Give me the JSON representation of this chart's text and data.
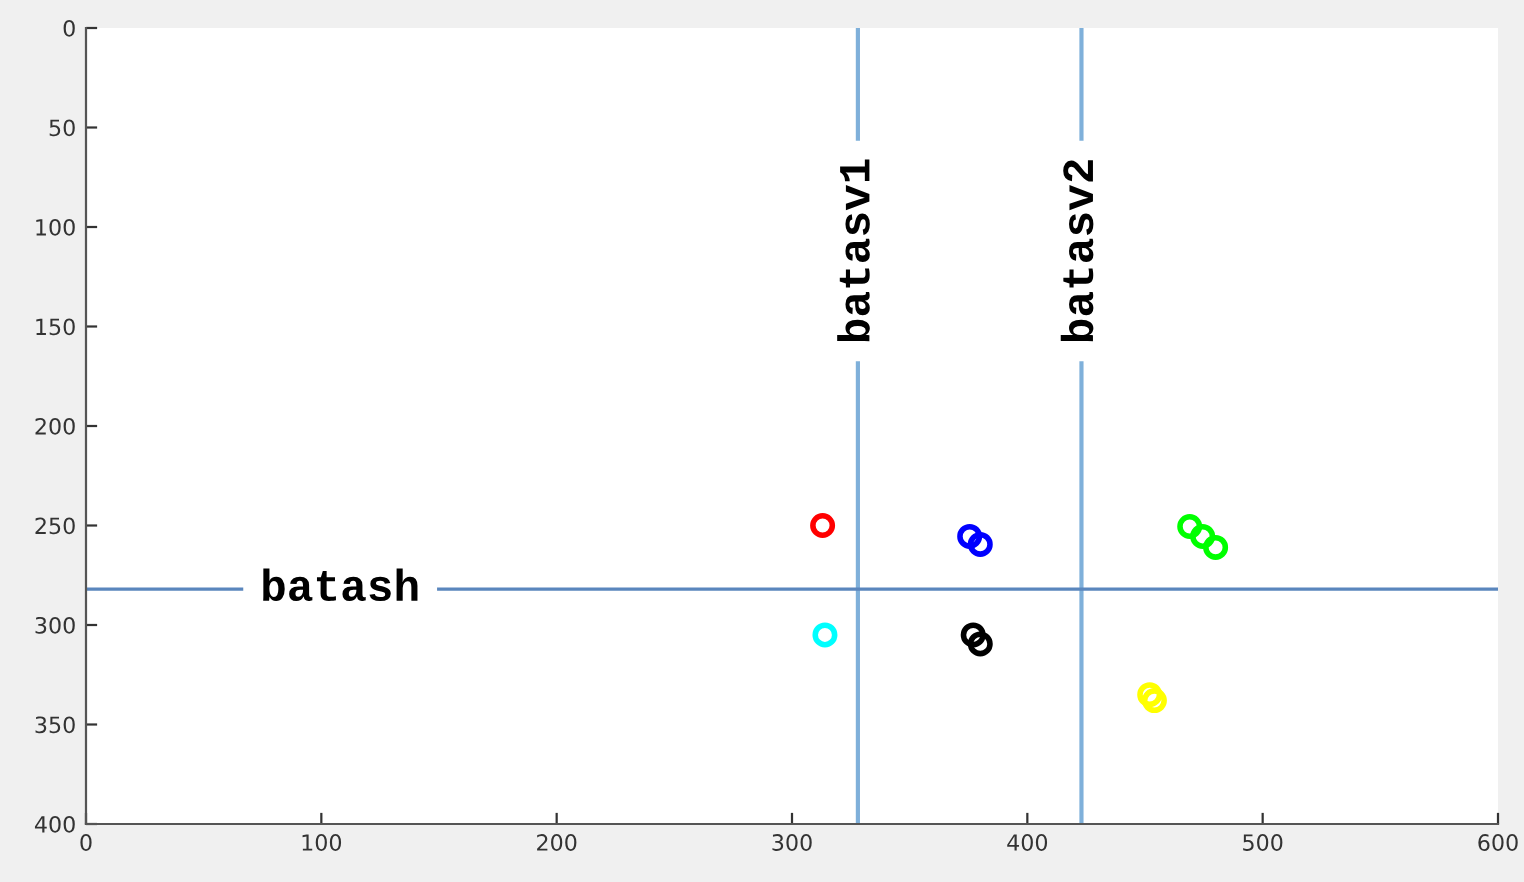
{
  "chart_data": {
    "type": "scatter",
    "marker": "circle",
    "grid": false,
    "legend": false,
    "xlim": [
      0,
      600
    ],
    "xticks": [
      0,
      100,
      200,
      300,
      400,
      500,
      600
    ],
    "ylim": [
      400,
      0
    ],
    "yticks": [
      0,
      50,
      100,
      150,
      200,
      250,
      300,
      350,
      400
    ],
    "series": [
      {
        "color": "#ff0000",
        "x": [
          313
        ],
        "values": [
          250
        ]
      },
      {
        "color": "#0000ff",
        "x": [
          375.5,
          380
        ],
        "values": [
          255.5,
          259.5
        ]
      },
      {
        "color": "#00ff00",
        "x": [
          469,
          474.5,
          480
        ],
        "values": [
          250.5,
          255.5,
          261
        ]
      },
      {
        "color": "#00ffff",
        "x": [
          314
        ],
        "values": [
          305
        ]
      },
      {
        "color": "#000000",
        "x": [
          377,
          380
        ],
        "values": [
          305,
          309.5
        ]
      },
      {
        "color": "#ffff00",
        "x": [
          452,
          454
        ],
        "values": [
          335,
          338
        ]
      }
    ],
    "ref_lines": [
      {
        "axis": "x",
        "value": 328,
        "label": "batasv1",
        "color": "#7fb0da",
        "line_style": "solid"
      },
      {
        "axis": "x",
        "value": 423,
        "label": "batasv2",
        "color": "#7fb0da",
        "line_style": "solid"
      },
      {
        "axis": "y",
        "value": 282,
        "label": "batash",
        "color": "#5a86bd",
        "line_style": "solid"
      }
    ]
  }
}
